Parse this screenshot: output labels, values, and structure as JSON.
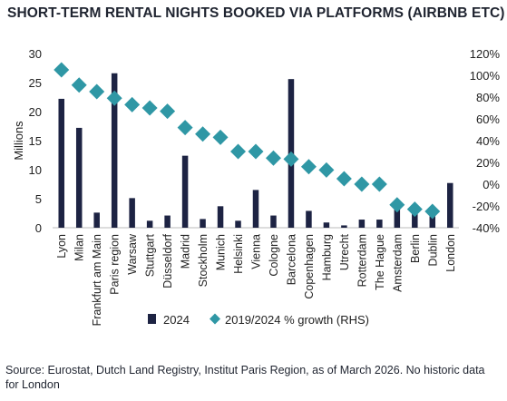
{
  "title": "SHORT-TERM RENTAL NIGHTS BOOKED VIA PLATFORMS (AIRBNB ETC)",
  "source": "Source: Eurostat, Dutch Land Registry, Institut Paris Region, as of March 2026. No historic data for London",
  "colors": {
    "bar": "#1d2343",
    "marker": "#2f97a5"
  },
  "chart_data": {
    "type": "bar",
    "categories": [
      "Lyon",
      "Milan",
      "Frankfurt am Main",
      "Paris region",
      "Warsaw",
      "Stuttgart",
      "Düsseldorf",
      "Madrid",
      "Stockholm",
      "Munich",
      "Helsinki",
      "Vienna",
      "Cologne",
      "Barcelona",
      "Copenhagen",
      "Hamburg",
      "Utrecht",
      "Rotterdam",
      "The Hague",
      "Amsterdam",
      "Berlin",
      "Dublin",
      "London"
    ],
    "ylabel": "Millions",
    "ylim": [
      0,
      30
    ],
    "yticks": [
      "0",
      "5",
      "10",
      "15",
      "20",
      "25",
      "30"
    ],
    "y2lim": [
      -40,
      120
    ],
    "y2ticks": [
      "-40%",
      "-20%",
      "0%",
      "20%",
      "40%",
      "60%",
      "80%",
      "100%",
      "120%"
    ],
    "legend_position": "bottom",
    "series": [
      {
        "name": "2024",
        "kind": "bar",
        "values": [
          22.2,
          17.2,
          2.6,
          26.6,
          5.1,
          1.2,
          2.1,
          12.4,
          1.5,
          3.7,
          1.2,
          6.5,
          2.1,
          25.6,
          2.9,
          0.9,
          0.4,
          1.4,
          1.4,
          3.5,
          3.0,
          2.0,
          7.7
        ]
      },
      {
        "name": "2019/2024 % growth (RHS)",
        "kind": "diamond",
        "values": [
          105,
          91,
          85,
          79,
          73,
          70,
          67,
          52,
          46,
          43,
          30,
          30,
          24,
          23,
          16,
          13,
          5,
          0,
          0,
          -19,
          -23,
          -25,
          null
        ]
      }
    ]
  }
}
